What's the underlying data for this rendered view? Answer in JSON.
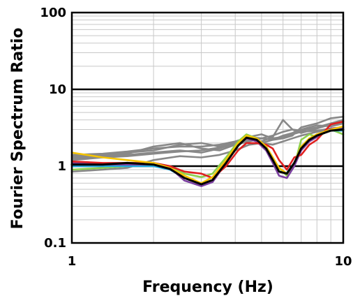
{
  "chart_data": {
    "type": "line",
    "title": "",
    "xlabel": "Frequency (Hz)",
    "ylabel": "Fourier Spectrum Ratio",
    "xscale": "log",
    "yscale": "log",
    "xlim": [
      1,
      10
    ],
    "ylim": [
      0.1,
      100
    ],
    "x_ticks": [
      {
        "value": 1,
        "label": "1"
      },
      {
        "value": 10,
        "label": "10"
      }
    ],
    "y_ticks": [
      {
        "value": 0.1,
        "label": "0.1"
      },
      {
        "value": 1,
        "label": "1"
      },
      {
        "value": 10,
        "label": "10"
      },
      {
        "value": 100,
        "label": "100"
      }
    ],
    "grid": true,
    "legend": "none",
    "series": [
      {
        "color": "#888888",
        "points": [
          [
            1.0,
            1.4
          ],
          [
            1.3,
            1.45
          ],
          [
            1.6,
            1.55
          ],
          [
            2.0,
            1.7
          ],
          [
            2.5,
            1.8
          ],
          [
            3.0,
            1.8
          ],
          [
            3.5,
            1.9
          ],
          [
            4.0,
            2.1
          ],
          [
            4.5,
            2.4
          ],
          [
            5.0,
            2.3
          ],
          [
            5.5,
            2.5
          ],
          [
            6.0,
            2.8
          ],
          [
            6.5,
            3.0
          ],
          [
            7.0,
            2.9
          ],
          [
            8.0,
            3.2
          ],
          [
            9.0,
            3.6
          ],
          [
            10.0,
            4.0
          ]
        ]
      },
      {
        "color": "#888888",
        "points": [
          [
            1.0,
            1.35
          ],
          [
            1.3,
            1.4
          ],
          [
            1.6,
            1.5
          ],
          [
            2.0,
            1.6
          ],
          [
            2.5,
            1.9
          ],
          [
            3.0,
            2.0
          ],
          [
            3.5,
            1.8
          ],
          [
            4.0,
            2.0
          ],
          [
            4.5,
            2.3
          ],
          [
            5.0,
            2.0
          ],
          [
            5.5,
            2.2
          ],
          [
            6.0,
            2.5
          ],
          [
            6.5,
            2.7
          ],
          [
            7.0,
            3.0
          ],
          [
            8.0,
            3.4
          ],
          [
            9.0,
            3.3
          ],
          [
            10.0,
            3.6
          ]
        ]
      },
      {
        "color": "#888888",
        "points": [
          [
            1.0,
            1.25
          ],
          [
            1.3,
            1.3
          ],
          [
            1.6,
            1.4
          ],
          [
            2.0,
            1.5
          ],
          [
            2.5,
            1.6
          ],
          [
            3.0,
            1.5
          ],
          [
            3.5,
            1.7
          ],
          [
            4.0,
            2.0
          ],
          [
            4.5,
            2.2
          ],
          [
            5.0,
            2.1
          ],
          [
            5.5,
            2.4
          ],
          [
            6.0,
            4.0
          ],
          [
            6.5,
            3.0
          ],
          [
            7.0,
            2.7
          ],
          [
            8.0,
            3.1
          ],
          [
            9.0,
            3.5
          ],
          [
            10.0,
            3.8
          ]
        ]
      },
      {
        "color": "#888888",
        "points": [
          [
            1.0,
            1.2
          ],
          [
            1.3,
            1.3
          ],
          [
            1.6,
            1.35
          ],
          [
            2.0,
            1.45
          ],
          [
            2.5,
            1.55
          ],
          [
            3.0,
            1.6
          ],
          [
            3.5,
            1.75
          ],
          [
            4.0,
            1.9
          ],
          [
            4.5,
            2.1
          ],
          [
            5.0,
            2.3
          ],
          [
            5.5,
            2.2
          ],
          [
            6.0,
            2.3
          ],
          [
            6.5,
            2.5
          ],
          [
            7.0,
            3.2
          ],
          [
            8.0,
            3.6
          ],
          [
            9.0,
            4.2
          ],
          [
            10.0,
            4.4
          ]
        ]
      },
      {
        "color": "#888888",
        "points": [
          [
            1.0,
            1.3
          ],
          [
            1.3,
            1.35
          ],
          [
            1.6,
            1.45
          ],
          [
            2.0,
            1.8
          ],
          [
            2.5,
            2.0
          ],
          [
            3.0,
            1.7
          ],
          [
            3.5,
            1.6
          ],
          [
            4.0,
            1.9
          ],
          [
            4.5,
            2.4
          ],
          [
            5.0,
            2.6
          ],
          [
            5.5,
            2.3
          ],
          [
            6.0,
            2.4
          ],
          [
            6.5,
            2.6
          ],
          [
            7.0,
            2.8
          ],
          [
            8.0,
            2.9
          ],
          [
            9.0,
            3.1
          ],
          [
            10.0,
            3.2
          ]
        ]
      },
      {
        "color": "#888888",
        "points": [
          [
            1.0,
            0.85
          ],
          [
            1.3,
            0.9
          ],
          [
            1.6,
            0.95
          ],
          [
            2.0,
            1.2
          ],
          [
            2.5,
            1.35
          ],
          [
            3.0,
            1.3
          ],
          [
            3.5,
            1.4
          ],
          [
            4.0,
            1.6
          ],
          [
            4.5,
            1.9
          ],
          [
            5.0,
            2.0
          ],
          [
            5.5,
            1.9
          ],
          [
            6.0,
            2.1
          ],
          [
            6.5,
            2.3
          ],
          [
            7.0,
            2.5
          ],
          [
            8.0,
            2.8
          ],
          [
            9.0,
            3.0
          ],
          [
            10.0,
            3.1
          ]
        ]
      },
      {
        "color": "#8dd14d",
        "points": [
          [
            1.0,
            0.9
          ],
          [
            1.3,
            0.95
          ],
          [
            1.6,
            1.0
          ],
          [
            2.0,
            1.1
          ],
          [
            2.3,
            1.0
          ],
          [
            2.6,
            0.8
          ],
          [
            3.0,
            0.72
          ],
          [
            3.3,
            0.8
          ],
          [
            3.7,
            1.3
          ],
          [
            4.1,
            2.1
          ],
          [
            4.4,
            2.6
          ],
          [
            4.8,
            2.3
          ],
          [
            5.2,
            1.8
          ],
          [
            5.5,
            1.3
          ],
          [
            5.8,
            0.95
          ],
          [
            6.2,
            0.75
          ],
          [
            6.6,
            1.0
          ],
          [
            7.0,
            2.2
          ],
          [
            7.5,
            2.6
          ],
          [
            8.0,
            2.4
          ],
          [
            9.0,
            3.0
          ],
          [
            10.0,
            2.6
          ]
        ]
      },
      {
        "color": "#1fa9e0",
        "points": [
          [
            1.0,
            1.0
          ],
          [
            1.3,
            1.0
          ],
          [
            1.6,
            1.0
          ],
          [
            2.0,
            1.0
          ],
          [
            2.3,
            0.9
          ],
          [
            2.6,
            0.7
          ],
          [
            3.0,
            0.58
          ],
          [
            3.3,
            0.66
          ],
          [
            3.7,
            1.1
          ],
          [
            4.1,
            1.9
          ],
          [
            4.4,
            2.4
          ],
          [
            4.8,
            2.2
          ],
          [
            5.2,
            1.7
          ],
          [
            5.5,
            1.2
          ],
          [
            5.8,
            0.85
          ],
          [
            6.2,
            0.82
          ],
          [
            6.6,
            1.1
          ],
          [
            7.0,
            1.7
          ],
          [
            7.5,
            2.2
          ],
          [
            8.0,
            2.5
          ],
          [
            9.0,
            2.9
          ],
          [
            10.0,
            2.9
          ]
        ]
      },
      {
        "color": "#7b3fa0",
        "points": [
          [
            1.0,
            1.1
          ],
          [
            1.3,
            1.05
          ],
          [
            1.6,
            1.05
          ],
          [
            2.0,
            1.05
          ],
          [
            2.3,
            0.95
          ],
          [
            2.6,
            0.65
          ],
          [
            3.0,
            0.55
          ],
          [
            3.3,
            0.62
          ],
          [
            3.7,
            1.1
          ],
          [
            4.1,
            1.9
          ],
          [
            4.4,
            2.3
          ],
          [
            4.8,
            2.1
          ],
          [
            5.2,
            1.6
          ],
          [
            5.5,
            1.1
          ],
          [
            5.8,
            0.75
          ],
          [
            6.2,
            0.7
          ],
          [
            6.6,
            1.0
          ],
          [
            7.0,
            1.6
          ],
          [
            7.5,
            2.1
          ],
          [
            8.0,
            2.4
          ],
          [
            9.0,
            3.1
          ],
          [
            10.0,
            3.2
          ]
        ]
      },
      {
        "color": "#e02020",
        "points": [
          [
            1.0,
            1.15
          ],
          [
            1.3,
            1.1
          ],
          [
            1.6,
            1.1
          ],
          [
            2.0,
            1.1
          ],
          [
            2.3,
            1.0
          ],
          [
            2.6,
            0.85
          ],
          [
            3.0,
            0.8
          ],
          [
            3.3,
            0.7
          ],
          [
            3.7,
            1.0
          ],
          [
            4.1,
            1.6
          ],
          [
            4.4,
            2.0
          ],
          [
            4.8,
            2.0
          ],
          [
            5.2,
            1.9
          ],
          [
            5.5,
            1.7
          ],
          [
            5.8,
            1.2
          ],
          [
            6.2,
            0.9
          ],
          [
            6.6,
            1.3
          ],
          [
            7.0,
            1.4
          ],
          [
            7.5,
            1.9
          ],
          [
            8.0,
            2.2
          ],
          [
            9.0,
            3.5
          ],
          [
            10.0,
            3.8
          ]
        ]
      },
      {
        "color": "#f5c400",
        "points": [
          [
            1.0,
            1.5
          ],
          [
            1.3,
            1.3
          ],
          [
            1.6,
            1.2
          ],
          [
            2.0,
            1.1
          ],
          [
            2.3,
            0.95
          ],
          [
            2.6,
            0.75
          ],
          [
            3.0,
            0.6
          ],
          [
            3.3,
            0.72
          ],
          [
            3.7,
            1.2
          ],
          [
            4.1,
            2.0
          ],
          [
            4.4,
            2.5
          ],
          [
            4.8,
            2.3
          ],
          [
            5.2,
            1.8
          ],
          [
            5.5,
            1.3
          ],
          [
            5.8,
            0.95
          ],
          [
            6.2,
            0.8
          ],
          [
            6.6,
            1.1
          ],
          [
            7.0,
            1.8
          ],
          [
            7.5,
            2.3
          ],
          [
            8.0,
            2.6
          ],
          [
            9.0,
            3.0
          ],
          [
            10.0,
            3.3
          ]
        ]
      },
      {
        "color": "#000000",
        "points": [
          [
            1.0,
            1.05
          ],
          [
            1.3,
            1.05
          ],
          [
            1.6,
            1.1
          ],
          [
            2.0,
            1.05
          ],
          [
            2.3,
            0.92
          ],
          [
            2.6,
            0.7
          ],
          [
            3.0,
            0.58
          ],
          [
            3.3,
            0.66
          ],
          [
            3.7,
            1.1
          ],
          [
            4.1,
            1.85
          ],
          [
            4.4,
            2.35
          ],
          [
            4.8,
            2.2
          ],
          [
            5.2,
            1.7
          ],
          [
            5.5,
            1.2
          ],
          [
            5.8,
            0.85
          ],
          [
            6.2,
            0.8
          ],
          [
            6.6,
            1.1
          ],
          [
            7.0,
            1.7
          ],
          [
            7.5,
            2.2
          ],
          [
            8.0,
            2.5
          ],
          [
            9.0,
            2.9
          ],
          [
            10.0,
            3.0
          ]
        ]
      }
    ]
  }
}
